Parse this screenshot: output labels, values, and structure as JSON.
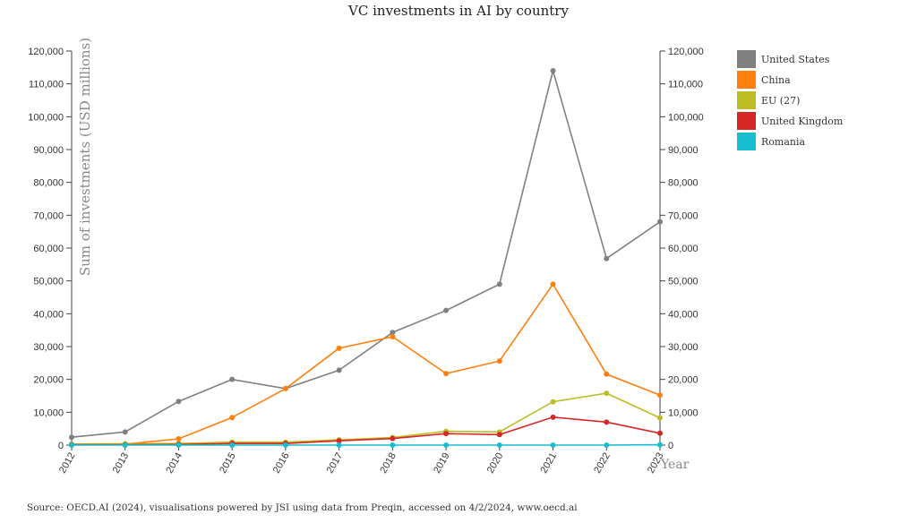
{
  "chart_data": {
    "type": "line",
    "title": "VC investments in AI by country",
    "ylabel": "Sum of investments (USD millions)",
    "xlabel": "Year",
    "x": [
      "2012",
      "2013",
      "2014",
      "2015",
      "2016",
      "2017",
      "2018",
      "2019",
      "2020",
      "2021",
      "2022",
      "2023"
    ],
    "ylim": [
      0,
      120000
    ],
    "yticks": [
      "0",
      "10,000",
      "20,000",
      "30,000",
      "40,000",
      "50,000",
      "60,000",
      "70,000",
      "80,000",
      "90,000",
      "100,000",
      "110,000",
      "120,000"
    ],
    "ytick_values": [
      0,
      10000,
      20000,
      30000,
      40000,
      50000,
      60000,
      70000,
      80000,
      90000,
      100000,
      110000,
      120000
    ],
    "legend_position": "top-right",
    "series": [
      {
        "name": "United States",
        "color": "#808080",
        "values": [
          2400,
          4000,
          13300,
          20000,
          17200,
          22800,
          34300,
          41000,
          49000,
          114000,
          56800,
          68000
        ]
      },
      {
        "name": "China",
        "color": "#ff7f0e",
        "values": [
          100,
          300,
          1900,
          8400,
          17200,
          29500,
          33000,
          21800,
          25600,
          49000,
          21600,
          15200
        ]
      },
      {
        "name": "EU (27)",
        "color": "#bcbd22",
        "values": [
          300,
          400,
          500,
          900,
          900,
          1600,
          2300,
          4200,
          4000,
          13200,
          15800,
          8300
        ]
      },
      {
        "name": "United Kingdom",
        "color": "#d62728",
        "values": [
          100,
          100,
          200,
          500,
          500,
          1300,
          2000,
          3500,
          3200,
          8500,
          7000,
          3600
        ]
      },
      {
        "name": "Romania",
        "color": "#17becf",
        "values": [
          0,
          0,
          0,
          0,
          0,
          0,
          0,
          0,
          0,
          0,
          0,
          100
        ]
      }
    ]
  },
  "source": "Source: OECD.AI (2024), visualisations powered by JSI using data from Preqin, accessed on 4/2/2024, www.oecd.ai"
}
